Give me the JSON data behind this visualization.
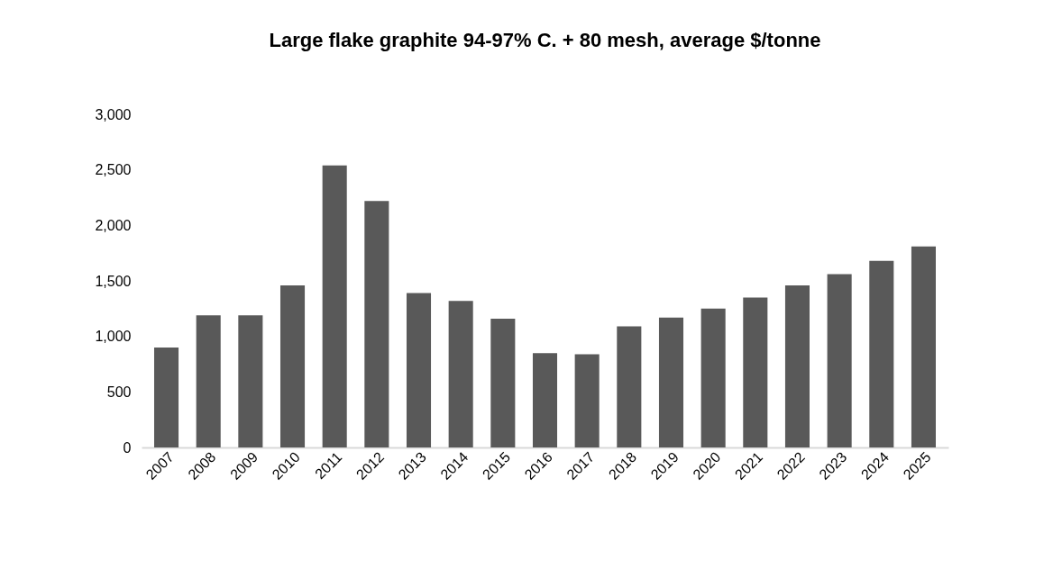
{
  "chart_data": {
    "type": "bar",
    "title": "Large flake graphite 94-97% C. + 80 mesh, average $/tonne",
    "categories": [
      "2007",
      "2008",
      "2009",
      "2010",
      "2011",
      "2012",
      "2013",
      "2014",
      "2015",
      "2016",
      "2017",
      "2018",
      "2019",
      "2020",
      "2021",
      "2022",
      "2023",
      "2024",
      "2025"
    ],
    "values": [
      900,
      1190,
      1190,
      1460,
      2540,
      2220,
      1390,
      1320,
      1160,
      850,
      840,
      1090,
      1170,
      1250,
      1350,
      1460,
      1560,
      1680,
      1810
    ],
    "color": "#595959",
    "ylim": [
      0,
      3000
    ],
    "yticks": [
      0,
      500,
      {
        "value": 1000,
        "label": "1,000"
      },
      {
        "value": 1500,
        "label": "1,500"
      },
      {
        "value": 2000,
        "label": "2,000"
      },
      {
        "value": 2500,
        "label": "2,500"
      },
      {
        "value": 3000,
        "label": "3,000"
      }
    ],
    "grid": false
  }
}
